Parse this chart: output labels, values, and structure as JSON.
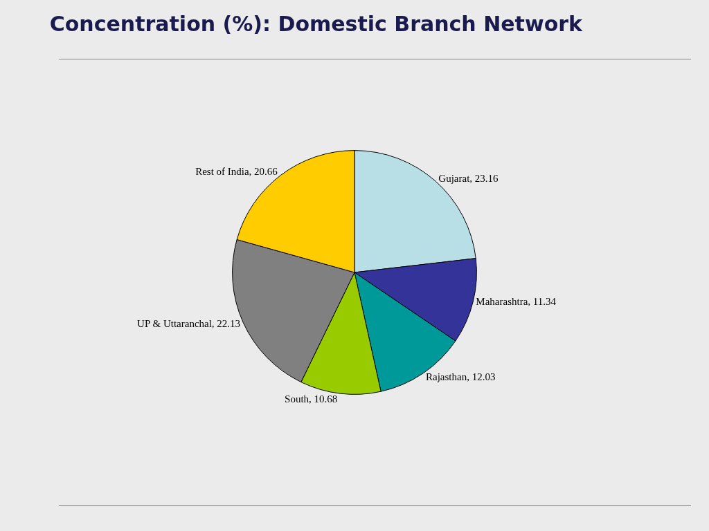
{
  "chart_data": {
    "type": "pie",
    "title": "Concentration (%): Domestic Branch Network",
    "categories": [
      "Gujarat",
      "Maharashtra",
      "Rajasthan",
      "South",
      "UP & Uttaranchal",
      "Rest of India"
    ],
    "values": [
      23.16,
      11.34,
      12.03,
      10.68,
      22.13,
      20.66
    ],
    "colors": [
      "#b8dfe6",
      "#333399",
      "#009999",
      "#99cc00",
      "#808080",
      "#ffcc00"
    ],
    "value_labels": [
      ", 23.16",
      ", 11.34",
      ", 12.03",
      ", 10.68",
      ", 22.13",
      ", 20.66"
    ],
    "legend": false
  }
}
